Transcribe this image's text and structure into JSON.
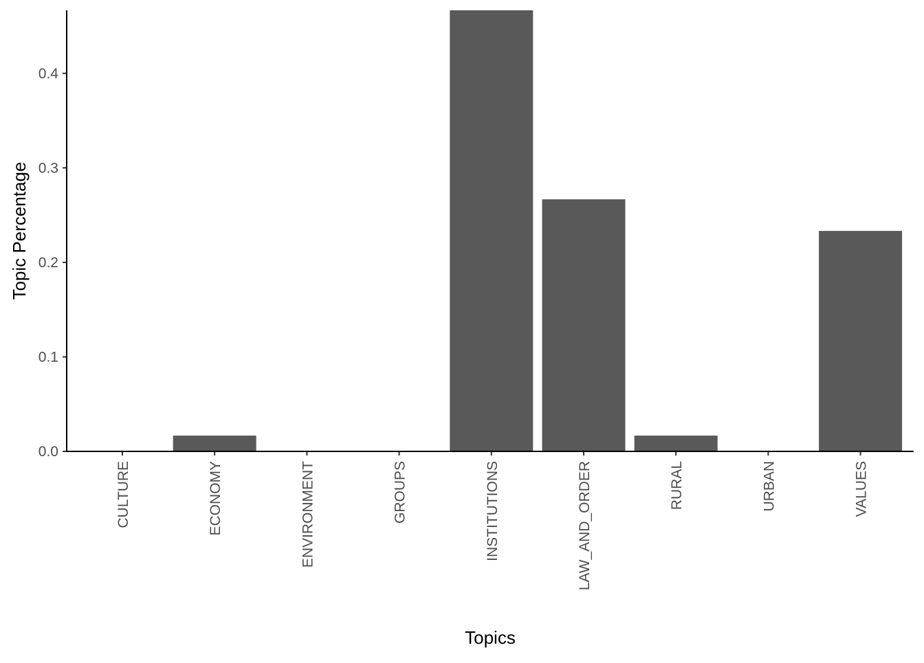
{
  "chart_data": {
    "type": "bar",
    "title": "",
    "xlabel": "Topics",
    "ylabel": "Topic Percentage",
    "categories": [
      "CULTURE",
      "ECONOMY",
      "ENVIRONMENT",
      "GROUPS",
      "INSTITUTIONS",
      "LAW_AND_ORDER",
      "RURAL",
      "URBAN",
      "VALUES"
    ],
    "values": [
      0.0,
      0.0167,
      0.0,
      0.0,
      0.4667,
      0.2667,
      0.0167,
      0.0,
      0.2333
    ],
    "ylim": [
      0,
      0.4667
    ],
    "yticks": [
      0.0,
      0.1,
      0.2,
      0.3,
      0.4
    ],
    "ytick_labels": [
      "0.0",
      "0.1",
      "0.2",
      "0.3",
      "0.4"
    ],
    "grid": false,
    "legend": "none",
    "colors": {
      "bar": "#595959",
      "axis": "#000000",
      "tick_label": "#4d4d4d"
    }
  }
}
